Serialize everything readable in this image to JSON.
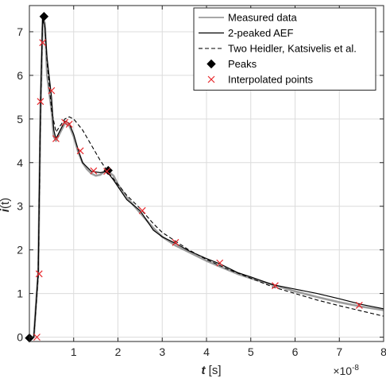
{
  "chart_data": {
    "type": "line",
    "ylabel_var": "i",
    "ylabel_arg": "(t)",
    "xlabel_var": "t",
    "xlabel_unit": " [s]",
    "x_multiplier_base": "×10",
    "x_multiplier_exp": "-8",
    "xlim": [
      0,
      8
    ],
    "ylim": [
      -0.1,
      7.6
    ],
    "grid": true,
    "legend_position": "top-right",
    "x_ticks": [
      1,
      2,
      3,
      4,
      5,
      6,
      7,
      8
    ],
    "x_tick_labels": [
      "1",
      "2",
      "3",
      "4",
      "5",
      "6",
      "7",
      "8"
    ],
    "y_ticks": [
      0,
      1,
      2,
      3,
      4,
      5,
      6,
      7
    ],
    "y_tick_labels": [
      "0",
      "1",
      "2",
      "3",
      "4",
      "5",
      "6",
      "7"
    ],
    "series": [
      {
        "name": "Measured data",
        "style": "measured",
        "color": "#8c8c8c",
        "x": [
          0,
          0.1,
          0.2,
          0.25,
          0.3,
          0.35,
          0.4,
          0.5,
          0.55,
          0.6,
          0.7,
          0.8,
          0.9,
          1.0,
          1.1,
          1.2,
          1.3,
          1.4,
          1.5,
          1.6,
          1.7,
          1.8,
          1.9,
          2.0,
          2.2,
          2.5,
          2.8,
          3.0,
          3.3,
          3.6,
          4.0,
          4.3,
          4.7,
          5.0,
          5.5,
          6.0,
          6.5,
          7.0,
          7.5,
          8.0
        ],
        "y": [
          0,
          0.0,
          1.5,
          5.0,
          7.3,
          7.2,
          6.0,
          5.2,
          4.6,
          4.5,
          4.7,
          4.9,
          4.85,
          4.6,
          4.25,
          4.0,
          3.85,
          3.75,
          3.7,
          3.72,
          3.8,
          3.78,
          3.7,
          3.5,
          3.2,
          2.85,
          2.5,
          2.3,
          2.1,
          1.95,
          1.75,
          1.62,
          1.45,
          1.35,
          1.2,
          1.05,
          0.92,
          0.8,
          0.7,
          0.62
        ]
      },
      {
        "name": "2-peaked AEF",
        "style": "solid",
        "color": "#000000",
        "x": [
          0,
          0.1,
          0.2,
          0.25,
          0.3,
          0.35,
          0.4,
          0.5,
          0.55,
          0.6,
          0.7,
          0.8,
          0.9,
          1.0,
          1.1,
          1.2,
          1.4,
          1.6,
          1.75,
          1.9,
          2.0,
          2.2,
          2.5,
          2.8,
          3.0,
          3.3,
          3.6,
          4.0,
          4.3,
          4.7,
          5.0,
          5.5,
          6.0,
          6.5,
          7.0,
          7.5,
          8.0
        ],
        "y": [
          0,
          0.0,
          1.5,
          5.4,
          7.35,
          7.1,
          6.4,
          5.5,
          4.75,
          4.55,
          4.75,
          4.95,
          4.9,
          4.65,
          4.3,
          4.0,
          3.8,
          3.77,
          3.8,
          3.6,
          3.45,
          3.15,
          2.9,
          2.45,
          2.3,
          2.15,
          1.98,
          1.8,
          1.68,
          1.48,
          1.38,
          1.2,
          1.1,
          1.0,
          0.88,
          0.75,
          0.65
        ]
      },
      {
        "name": "Two Heidler, Katsivelis et al.",
        "style": "dashed",
        "color": "#000000",
        "x": [
          0,
          0.1,
          0.2,
          0.25,
          0.3,
          0.35,
          0.4,
          0.5,
          0.6,
          0.7,
          0.8,
          0.9,
          1.0,
          1.2,
          1.4,
          1.6,
          1.8,
          2.0,
          2.2,
          2.5,
          2.8,
          3.0,
          3.3,
          3.6,
          4.0,
          4.5,
          5.0,
          5.5,
          6.0,
          6.5,
          7.0,
          7.5,
          8.0
        ],
        "y": [
          0,
          0.0,
          1.4,
          5.2,
          7.3,
          7.1,
          6.3,
          5.2,
          4.7,
          4.85,
          5.0,
          5.05,
          5.0,
          4.75,
          4.4,
          4.05,
          3.75,
          3.5,
          3.25,
          2.95,
          2.6,
          2.4,
          2.2,
          2.0,
          1.78,
          1.55,
          1.35,
          1.15,
          1.0,
          0.85,
          0.72,
          0.6,
          0.48
        ]
      },
      {
        "name": "Peaks",
        "style": "diamond",
        "color": "#000000",
        "x": [
          0.0,
          0.33,
          1.78
        ],
        "y": [
          -0.02,
          7.35,
          3.82
        ]
      },
      {
        "name": "Interpolated points",
        "style": "cross",
        "color": "#e8262b",
        "x": [
          0.17,
          0.22,
          0.25,
          0.3,
          0.5,
          0.6,
          0.8,
          0.9,
          1.15,
          1.45,
          1.75,
          2.55,
          3.3,
          4.3,
          5.55,
          7.45
        ],
        "y": [
          0.0,
          1.45,
          5.4,
          6.75,
          5.65,
          4.55,
          4.92,
          4.88,
          4.27,
          3.81,
          3.8,
          2.9,
          2.17,
          1.7,
          1.18,
          0.73
        ]
      }
    ]
  }
}
